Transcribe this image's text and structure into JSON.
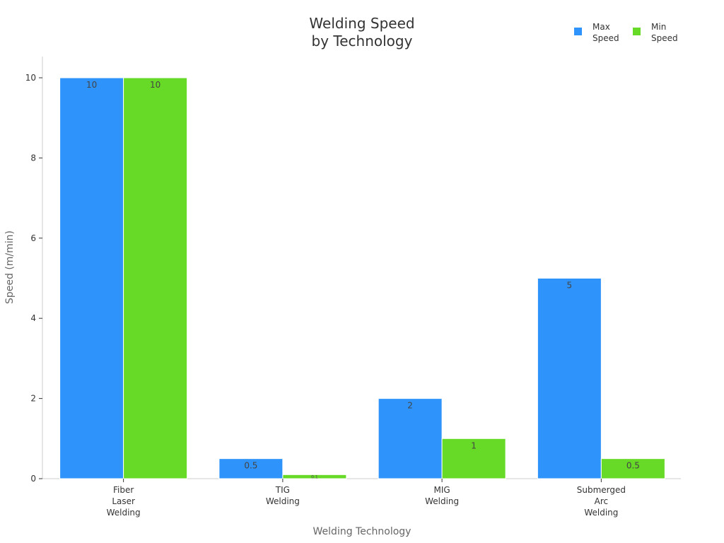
{
  "chart_data": {
    "type": "bar",
    "title": [
      "Welding Speed",
      "by Technology"
    ],
    "xlabel": "Welding Technology",
    "ylabel": "Speed (m/min)",
    "categories": [
      [
        "Fiber",
        "Laser",
        "Welding"
      ],
      [
        "TIG",
        "Welding"
      ],
      [
        "MIG",
        "Welding"
      ],
      [
        "Submerged",
        "Arc",
        "Welding"
      ]
    ],
    "series": [
      {
        "name": [
          "Max",
          "Speed"
        ],
        "values": [
          10,
          0.5,
          2,
          5
        ],
        "labels": [
          "10",
          "0.5",
          "2",
          "5"
        ],
        "color": "#2e93fa"
      },
      {
        "name": [
          "Min",
          "Speed"
        ],
        "values": [
          10,
          0.1,
          1,
          0.5
        ],
        "labels": [
          "10",
          "0.1",
          "1",
          "0.5"
        ],
        "color": "#66da26"
      }
    ],
    "ylim": [
      0,
      10
    ],
    "yticks": [
      "0",
      "2",
      "4",
      "6",
      "8",
      "10"
    ],
    "grid": false,
    "legend_position": "top-right"
  }
}
